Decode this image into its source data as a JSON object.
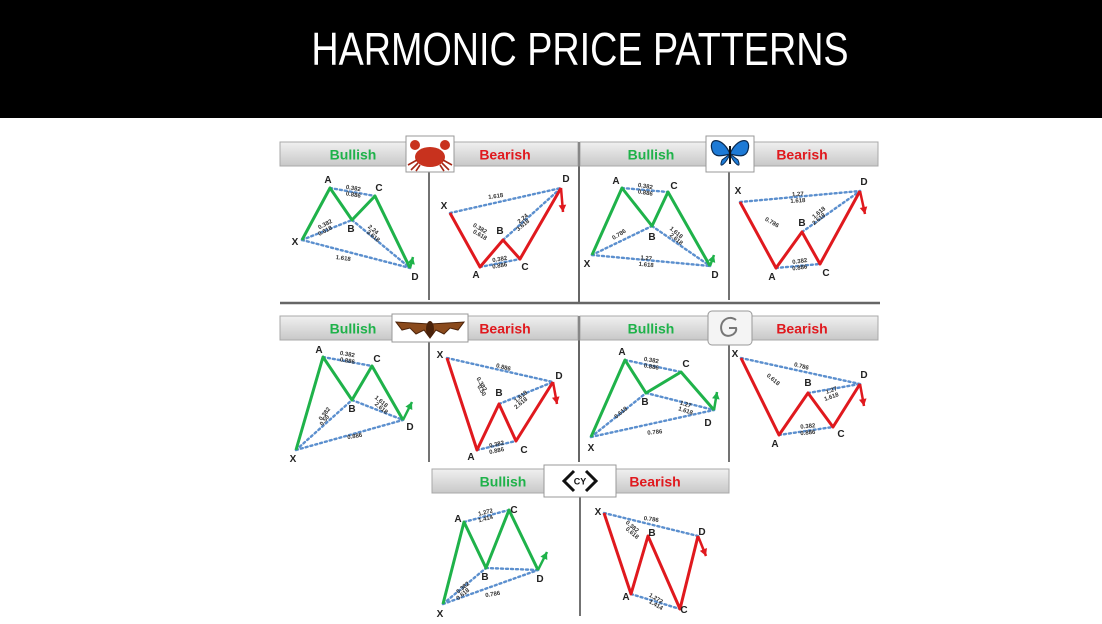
{
  "title": "HARMONIC PRICE PATTERNS",
  "colors": {
    "bullish": "#1fb24a",
    "bearish": "#e0191e",
    "dotted": "#5b8fce",
    "header_bg": "#d9d9d9",
    "divider": "#777777"
  },
  "bullish_label": "Bullish",
  "bearish_label": "Bearish",
  "panels": [
    {
      "icon": "crab-icon",
      "bull": {
        "points": {
          "X": "X",
          "A": "A",
          "B": "B",
          "C": "C",
          "D": "D"
        },
        "ratios": [
          [
            "0.382",
            "0.886"
          ],
          [
            "0.382",
            "0.618"
          ],
          [
            "2.24",
            "3.618"
          ],
          [
            "1.618"
          ]
        ]
      },
      "bear": {
        "points": {
          "X": "X",
          "A": "A",
          "B": "B",
          "C": "C",
          "D": "D"
        },
        "ratios": [
          [
            "1.618"
          ],
          [
            "0.382",
            "0.618"
          ],
          [
            "2.24",
            "3.618"
          ],
          [
            "0.382",
            "0.886"
          ]
        ]
      }
    },
    {
      "icon": "butterfly-icon",
      "bull": {
        "points": {
          "X": "X",
          "A": "A",
          "B": "B",
          "C": "C",
          "D": "D"
        },
        "ratios": [
          [
            "0.382",
            "0.886"
          ],
          [
            "0.786"
          ],
          [
            "1.618",
            "2.618"
          ],
          [
            "1.27",
            "1.618"
          ]
        ]
      },
      "bear": {
        "points": {
          "X": "X",
          "A": "A",
          "B": "B",
          "C": "C",
          "D": "D"
        },
        "ratios": [
          [
            "1.27",
            "1.618"
          ],
          [
            "0.786"
          ],
          [
            "1.618",
            "2.618"
          ],
          [
            "0.382",
            "0.886"
          ]
        ]
      }
    },
    {
      "icon": "bat-icon",
      "bull": {
        "points": {
          "X": "X",
          "A": "A",
          "B": "B",
          "C": "C",
          "D": "D"
        },
        "ratios": [
          [
            "0.382",
            "0.886"
          ],
          [
            "0.382",
            "0.50"
          ],
          [
            "1.618",
            "2.618"
          ],
          [
            "0.886"
          ]
        ]
      },
      "bear": {
        "points": {
          "X": "X",
          "A": "A",
          "B": "B",
          "C": "C",
          "D": "D"
        },
        "ratios": [
          [
            "0.886"
          ],
          [
            "0.382",
            "0.50"
          ],
          [
            "1.618",
            "2.618"
          ],
          [
            "0.382",
            "0.886"
          ]
        ]
      }
    },
    {
      "icon": "gartley-icon",
      "bull": {
        "points": {
          "X": "X",
          "A": "A",
          "B": "B",
          "C": "C",
          "D": "D"
        },
        "ratios": [
          [
            "0.382",
            "0.886"
          ],
          [
            "0.618"
          ],
          [
            "1.27",
            "1.618"
          ],
          [
            "0.786"
          ]
        ]
      },
      "bear": {
        "points": {
          "X": "X",
          "A": "A",
          "B": "B",
          "C": "C",
          "D": "D"
        },
        "ratios": [
          [
            "0.786"
          ],
          [
            "0.618"
          ],
          [
            "1.27",
            "1.618"
          ],
          [
            "0.382",
            "0.886"
          ]
        ]
      }
    },
    {
      "icon": "cypher-icon",
      "icon_text": "CY",
      "bull": {
        "points": {
          "X": "X",
          "A": "A",
          "B": "B",
          "C": "C",
          "D": "D"
        },
        "ratios": [
          [
            "1.272",
            "1.414"
          ],
          [
            "0.382",
            "0.618"
          ],
          [
            "0.786"
          ]
        ]
      },
      "bear": {
        "points": {
          "X": "X",
          "A": "A",
          "B": "B",
          "C": "C",
          "D": "D"
        },
        "ratios": [
          [
            "0.786"
          ],
          [
            "0.382",
            "0.618"
          ],
          [
            "1.272",
            "1.414"
          ]
        ]
      }
    }
  ]
}
